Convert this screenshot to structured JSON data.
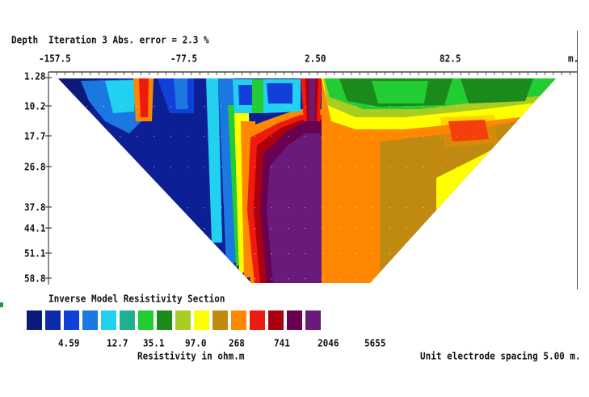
{
  "header": {
    "depth_label": "Depth",
    "iteration_text": "Iteration 3 Abs. error = 2.3 %",
    "x_unit": "m."
  },
  "footer": {
    "legend_title": "Inverse Model Resistivity Section",
    "scale_label": "Resistivity in ohm.m",
    "spacing_text": "Unit electrode spacing 5.00 m."
  },
  "colors": {
    "bins": [
      "#0b1a7a",
      "#0e2aa8",
      "#1040d8",
      "#1a78e0",
      "#22d0f0",
      "#20b090",
      "#22cc33",
      "#1a8a1a",
      "#aacc22",
      "#ffff00",
      "#c08a10",
      "#ff8800",
      "#ee1a10",
      "#aa0010",
      "#6a0050",
      "#6a1a7a"
    ]
  },
  "chart_data": {
    "type": "heatmap",
    "title": "Inverse Model Resistivity Section",
    "xlabel": "m.",
    "ylabel": "Depth",
    "x_ticks": [
      -157.5,
      -77.5,
      2.5,
      82.5
    ],
    "x_tick_labels": [
      "-157.5",
      "-77.5",
      "2.50",
      "82.5"
    ],
    "depth_ticks": [
      1.28,
      10.2,
      17.7,
      26.8,
      37.8,
      44.1,
      51.1,
      58.8
    ],
    "depth_tick_labels": [
      "1.28",
      "10.2",
      "17.7",
      "26.8",
      "37.8",
      "44.1",
      "51.1",
      "58.8"
    ],
    "xlim": [
      -180,
      150
    ],
    "ylim": [
      58.8,
      1.28
    ],
    "color_scale": {
      "unit": "ohm.m",
      "labels": [
        "4.59",
        "12.7",
        "35.1",
        "97.0",
        "268",
        "741",
        "2046",
        "5655"
      ]
    },
    "iteration": 3,
    "abs_error_percent": 2.3,
    "unit_electrode_spacing_m": 5.0
  }
}
